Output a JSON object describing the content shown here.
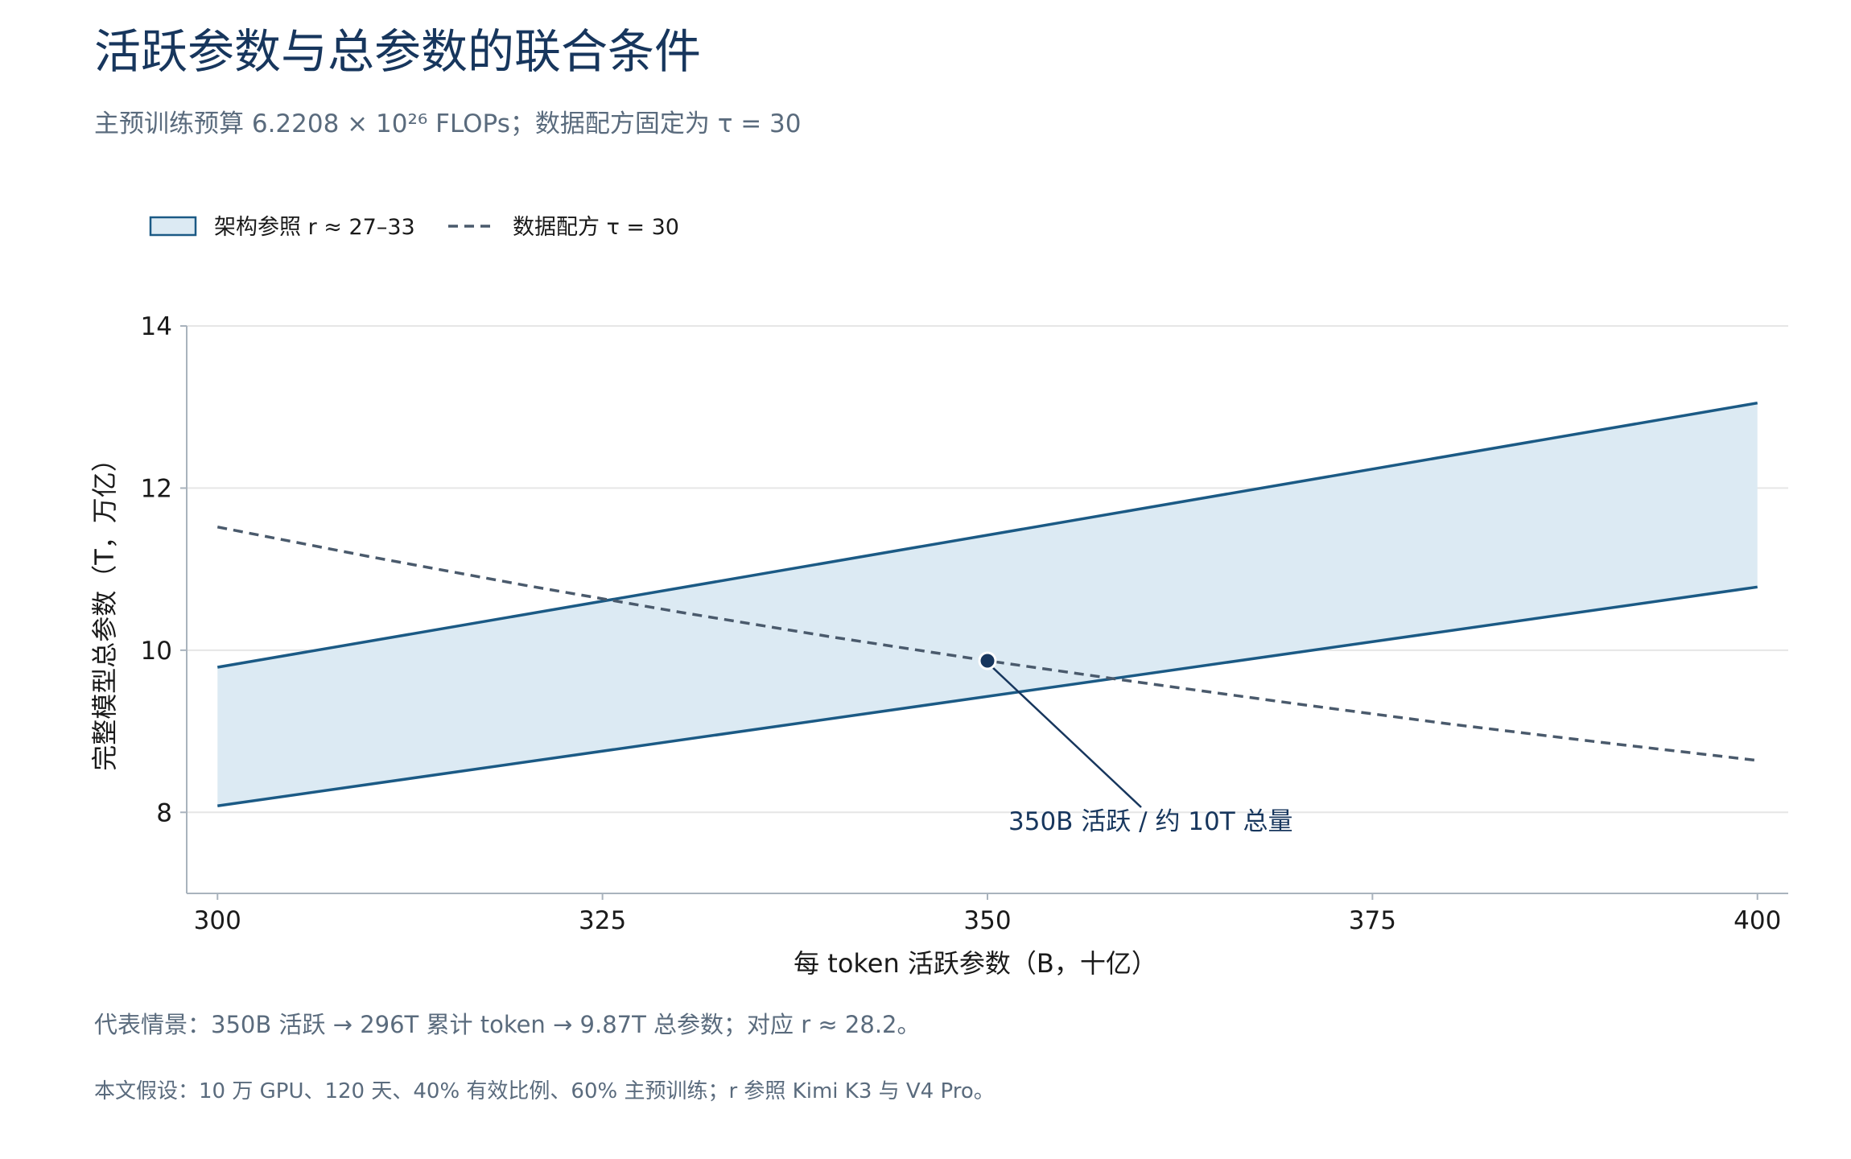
{
  "title": "活跃参数与总参数的联合条件",
  "subtitle": "主预训练预算 6.2208 × 10²⁶ FLOPs；数据配方固定为 τ = 30",
  "legend": {
    "band_label": "架构参照 r ≈ 27–33",
    "line_label": "数据配方 τ = 30"
  },
  "annotation": {
    "text": "350B 活跃 / 约 10T 总量",
    "point": {
      "x": 350,
      "y": 9.87
    }
  },
  "footnotes": [
    "代表情景：350B 活跃 → 296T 累计 token → 9.87T 总参数；对应 r ≈ 28.2。",
    "本文假设：10 万 GPU、120 天、40% 有效比例、60% 主预训练；r 参照 Kimi K3 与 V4 Pro。"
  ],
  "colors": {
    "band_fill": "#dceaf3",
    "band_edge": "#1b5a85",
    "dashed_line": "#4a5a6c",
    "point": "#17365d",
    "grid": "#e6e6e6",
    "axis": "#a9b3bd"
  },
  "chart_data": {
    "type": "line",
    "title": "活跃参数与总参数的联合条件",
    "xlabel": "每 token 活跃参数（B，十亿）",
    "ylabel": "完整模型总参数（T，万亿）",
    "xlim": [
      298,
      402
    ],
    "ylim": [
      7,
      14
    ],
    "xticks": [
      300,
      325,
      350,
      375,
      400
    ],
    "yticks": [
      8,
      10,
      12,
      14
    ],
    "grid": "horizontal",
    "legend_position": "top-left",
    "band": {
      "name": "架构参照 r ≈ 27–33",
      "x": [
        300,
        400
      ],
      "lower": [
        8.08,
        10.78
      ],
      "upper": [
        9.79,
        13.05
      ]
    },
    "series": [
      {
        "name": "数据配方 τ = 30",
        "style": "dashed",
        "x": [
          300,
          310,
          320,
          330,
          340,
          350,
          360,
          370,
          380,
          390,
          400
        ],
        "y": [
          11.52,
          11.15,
          10.8,
          10.47,
          10.16,
          9.87,
          9.6,
          9.34,
          9.09,
          8.86,
          8.64
        ]
      }
    ],
    "highlight_point": {
      "x": 350,
      "y": 9.87
    }
  }
}
